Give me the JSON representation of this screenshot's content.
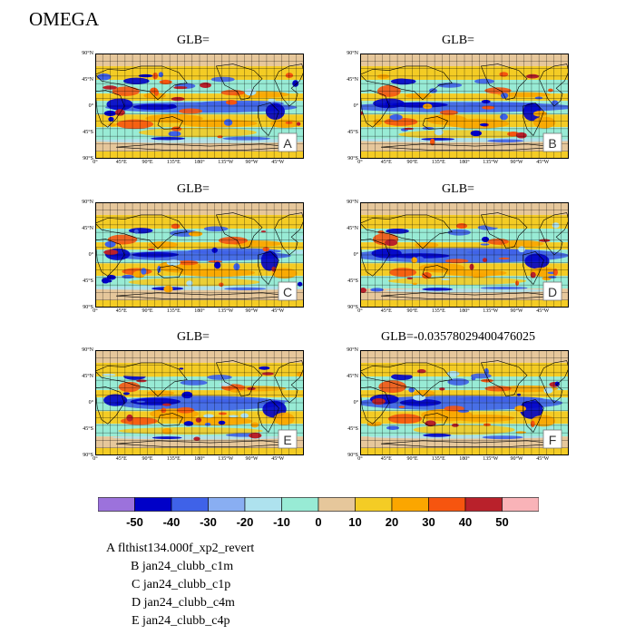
{
  "title": "OMEGA",
  "colors": {
    "levels": [
      "#9c72dc",
      "#0000c8",
      "#3f62e8",
      "#89aef2",
      "#aee2ee",
      "#98ebd5",
      "#e6c79b",
      "#f4cc25",
      "#fba600",
      "#f6550f",
      "#b9212b",
      "#f9b3b8"
    ],
    "land_outline": "#000000",
    "grid": "#000000"
  },
  "lat_ticks": [
    "90°N",
    "45°N",
    "0°",
    "45°S",
    "90°S"
  ],
  "lon_ticks": [
    "0°",
    "45°E",
    "90°E",
    "135°E",
    "180°",
    "135°W",
    "90°W",
    "45°W"
  ],
  "panels": [
    {
      "id": "A",
      "glb": "GLB="
    },
    {
      "id": "B",
      "glb": "GLB="
    },
    {
      "id": "C",
      "glb": "GLB="
    },
    {
      "id": "D",
      "glb": "GLB="
    },
    {
      "id": "E",
      "glb": "GLB="
    },
    {
      "id": "F",
      "glb": "GLB=-0.03578029400476025"
    }
  ],
  "colorbar": {
    "labels": [
      "-50",
      "-40",
      "-30",
      "-20",
      "-10",
      "0",
      "10",
      "20",
      "30",
      "40",
      "50"
    ]
  },
  "legend": [
    "A  flthist134.000f_xp2_revert",
    "B  jan24_clubb_c1m",
    "C  jan24_clubb_c1p",
    "D  jan24_clubb_c4m",
    "E  jan24_clubb_c4p"
  ]
}
